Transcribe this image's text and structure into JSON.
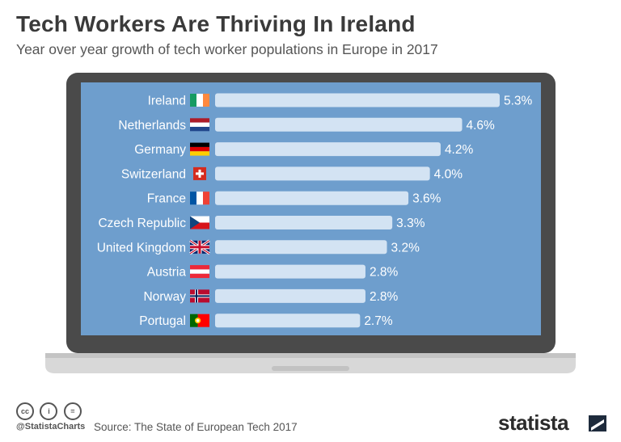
{
  "header": {
    "title": "Tech Workers Are Thriving In Ireland",
    "subtitle": "Year over year growth of tech worker populations in Europe in 2017"
  },
  "colors": {
    "screen_bg": "#6e9ecd",
    "bar": "#d3e3f3",
    "laptop_frame": "#4a4a4a",
    "laptop_base": "#d5d5d5",
    "text_dark": "#3a3a3a"
  },
  "chart_data": {
    "type": "bar",
    "orientation": "horizontal",
    "title": "Tech Workers Are Thriving In Ireland",
    "subtitle": "Year over year growth of tech worker populations in Europe in 2017",
    "categories": [
      "Ireland",
      "Netherlands",
      "Germany",
      "Switzerland",
      "France",
      "Czech Republic",
      "United Kingdom",
      "Austria",
      "Norway",
      "Portugal"
    ],
    "values": [
      5.3,
      4.6,
      4.2,
      4.0,
      3.6,
      3.3,
      3.2,
      2.8,
      2.8,
      2.7
    ],
    "value_labels": [
      "5.3%",
      "4.6%",
      "4.2%",
      "4.0%",
      "3.6%",
      "3.3%",
      "3.2%",
      "2.8%",
      "2.8%",
      "2.7%"
    ],
    "flags": [
      "ireland-flag",
      "netherlands-flag",
      "germany-flag",
      "switzerland-flag",
      "france-flag",
      "czech-flag",
      "uk-flag",
      "austria-flag",
      "norway-flag",
      "portugal-flag"
    ],
    "unit": "%",
    "xlim": [
      0,
      5.3
    ],
    "xlabel": "",
    "ylabel": ""
  },
  "footer": {
    "license_icons": [
      "cc-icon",
      "by-icon",
      "nd-icon"
    ],
    "license_glyphs": [
      "cc",
      "i",
      "="
    ],
    "handle": "@StatistaCharts",
    "source": "Source: The State of European Tech 2017",
    "brand": "statista"
  }
}
